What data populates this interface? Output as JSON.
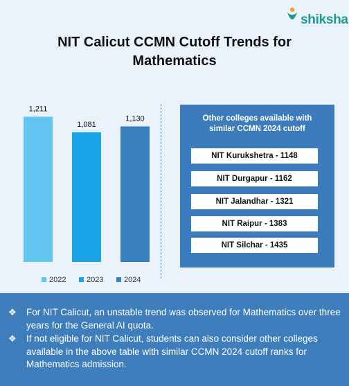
{
  "logo": {
    "text": "shiksha",
    "icon": "graduate-person-icon"
  },
  "title_line1": "NIT Calicut CCMN Cutoff Trends for",
  "title_line2": "Mathematics",
  "chart_data": {
    "type": "bar",
    "categories": [
      "2022",
      "2023",
      "2024"
    ],
    "values": [
      1211,
      1081,
      1130
    ],
    "value_labels": [
      "1,211",
      "1,081",
      "1,130"
    ],
    "colors": [
      "#62c6f0",
      "#1aa3e8",
      "#3a80bf"
    ],
    "ylim": [
      0,
      1300
    ],
    "legend": "bottom",
    "grid": false
  },
  "panel": {
    "title_line1": "Other colleges available with",
    "title_line2": "similar CCMN 2024 cutoff",
    "items": [
      "NIT Kurukshetra - 1148",
      "NIT Durgapur - 1162",
      "NIT Jalandhar - 1321",
      "NIT Raipur - 1383",
      "NIT Silchar - 1435"
    ]
  },
  "notes": {
    "bullet": "❖",
    "items": [
      "For NIT Calicut, an unstable trend was observed for Mathematics over three years for the General AI quota.",
      "If not eligible for NIT Calicut, students can also consider other colleges available in the above table with similar CCMN 2024 cutoff ranks for Mathematics admission."
    ]
  }
}
